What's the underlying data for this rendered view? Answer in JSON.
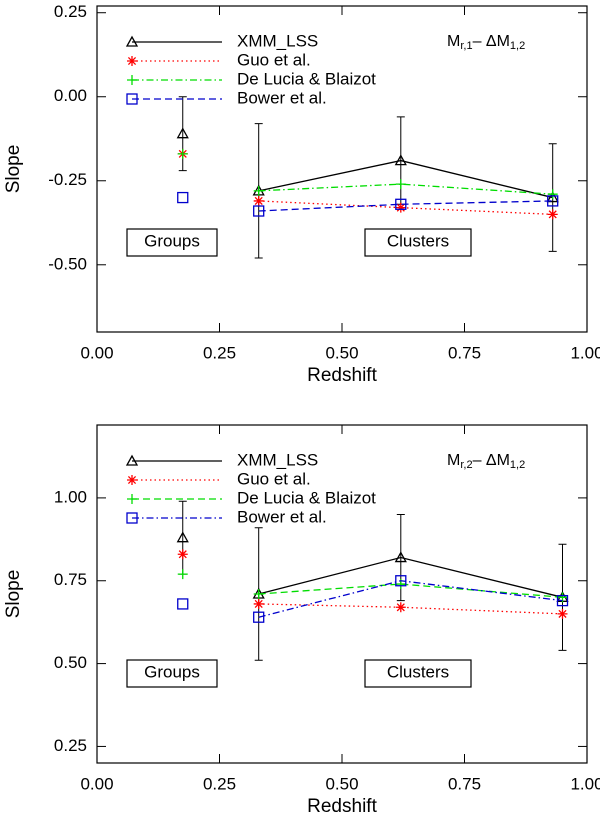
{
  "chart_data": [
    {
      "type": "line",
      "xlabel": "Redshift",
      "ylabel": "Slope",
      "annotation": {
        "main": "M",
        "sub1": "r,1",
        "mid": "– ΔM",
        "sub2": "1,2"
      },
      "boxes": [
        "Groups",
        "Clusters"
      ],
      "x_groups": [
        0.175
      ],
      "x_clusters": [
        0.33,
        0.62,
        0.93
      ],
      "xlim": [
        0,
        1
      ],
      "xticks": [
        {
          "value": 0,
          "label": "0.00"
        },
        {
          "value": 0.25,
          "label": "0.25"
        },
        {
          "value": 0.5,
          "label": "0.50"
        },
        {
          "value": 0.75,
          "label": "0.75"
        },
        {
          "value": 1,
          "label": "1.00"
        }
      ],
      "ylim": [
        -0.7,
        0.27
      ],
      "yticks": [
        {
          "value": 0.25,
          "label": "0.25"
        },
        {
          "value": 0,
          "label": "0.00"
        },
        {
          "value": -0.25,
          "label": "-0.25"
        },
        {
          "value": -0.5,
          "label": "-0.50"
        }
      ],
      "series": [
        {
          "name": "XMM_LSS",
          "color": "#000000",
          "marker": "triangle",
          "dash": "solid",
          "groups": [
            -0.11
          ],
          "groups_error": [
            0.11
          ],
          "clusters": [
            -0.28,
            -0.19,
            -0.3
          ],
          "clusters_error": [
            0.2,
            0.13,
            0.16
          ]
        },
        {
          "name": "Guo et al.",
          "color": "#ff0000",
          "marker": "star",
          "dash": "dotted",
          "groups": [
            -0.17
          ],
          "clusters": [
            -0.31,
            -0.33,
            -0.35
          ]
        },
        {
          "name": "De Lucia & Blaizot",
          "color": "#00dd00",
          "marker": "plus",
          "dash": "dashdot",
          "groups": [
            -0.17
          ],
          "clusters": [
            -0.28,
            -0.26,
            -0.29
          ]
        },
        {
          "name": "Bower et al.",
          "color": "#0000cc",
          "marker": "square",
          "dash": "dashed",
          "groups": [
            -0.3
          ],
          "clusters": [
            -0.34,
            -0.32,
            -0.31
          ]
        }
      ]
    },
    {
      "type": "line",
      "xlabel": "Redshift",
      "ylabel": "Slope",
      "annotation": {
        "main": "M",
        "sub1": "r,2",
        "mid": "– ΔM",
        "sub2": "1,2"
      },
      "boxes": [
        "Groups",
        "Clusters"
      ],
      "x_groups": [
        0.175
      ],
      "x_clusters": [
        0.33,
        0.62,
        0.95
      ],
      "xlim": [
        0,
        1
      ],
      "xticks": [
        {
          "value": 0,
          "label": "0.00"
        },
        {
          "value": 0.25,
          "label": "0.25"
        },
        {
          "value": 0.5,
          "label": "0.50"
        },
        {
          "value": 0.75,
          "label": "0.75"
        },
        {
          "value": 1,
          "label": "1.00"
        }
      ],
      "ylim": [
        0.2,
        1.22
      ],
      "yticks": [
        {
          "value": 1,
          "label": "1.00"
        },
        {
          "value": 0.75,
          "label": "0.75"
        },
        {
          "value": 0.5,
          "label": "0.50"
        },
        {
          "value": 0.25,
          "label": "0.25"
        }
      ],
      "series": [
        {
          "name": "XMM_LSS",
          "color": "#000000",
          "marker": "triangle",
          "dash": "solid",
          "groups": [
            0.88
          ],
          "groups_error": [
            0.11
          ],
          "clusters": [
            0.71,
            0.82,
            0.7
          ],
          "clusters_error": [
            0.2,
            0.13,
            0.16
          ]
        },
        {
          "name": "Guo et al.",
          "color": "#ff0000",
          "marker": "star",
          "dash": "dotted",
          "groups": [
            0.83
          ],
          "clusters": [
            0.68,
            0.67,
            0.65
          ]
        },
        {
          "name": "De Lucia & Blaizot",
          "color": "#00dd00",
          "marker": "plus",
          "dash": "dashed",
          "groups": [
            0.77
          ],
          "clusters": [
            0.71,
            0.74,
            0.7
          ]
        },
        {
          "name": "Bower et al.",
          "color": "#0000cc",
          "marker": "square",
          "dash": "dashdot",
          "groups": [
            0.68
          ],
          "clusters": [
            0.64,
            0.75,
            0.69
          ]
        }
      ]
    }
  ]
}
